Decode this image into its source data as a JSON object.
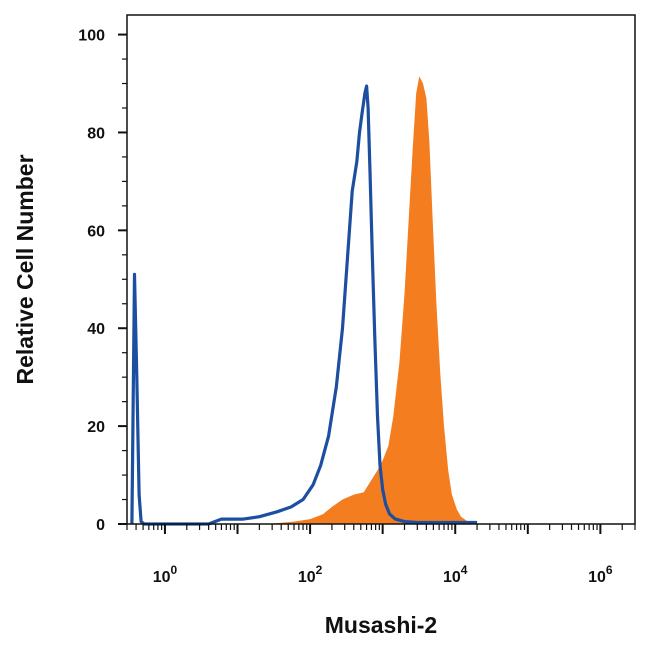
{
  "chart_data": {
    "type": "area",
    "title": "",
    "xlabel": "Musashi-2",
    "ylabel": "Relative Cell Number",
    "xscale": "log",
    "xlim": [
      0.3,
      3000000
    ],
    "ylim": [
      0,
      104
    ],
    "grid": false,
    "legend": "none",
    "y_ticks": [
      0,
      20,
      40,
      60,
      80,
      100
    ],
    "x_ticks": [
      {
        "base": "10",
        "exp": "0",
        "value": 1
      },
      {
        "base": "10",
        "exp": "2",
        "value": 100
      },
      {
        "base": "10",
        "exp": "4",
        "value": 10000
      },
      {
        "base": "10",
        "exp": "6",
        "value": 1000000
      }
    ],
    "series": [
      {
        "style": "filled",
        "color": "#f47d20",
        "points": [
          [
            25,
            0
          ],
          [
            60,
            0.5
          ],
          [
            100,
            1
          ],
          [
            150,
            2
          ],
          [
            200,
            3.5
          ],
          [
            280,
            5
          ],
          [
            400,
            6
          ],
          [
            550,
            6.5
          ],
          [
            700,
            9
          ],
          [
            850,
            11
          ],
          [
            1000,
            13
          ],
          [
            1200,
            16
          ],
          [
            1400,
            22
          ],
          [
            1700,
            33
          ],
          [
            2000,
            47
          ],
          [
            2300,
            63
          ],
          [
            2600,
            77
          ],
          [
            2900,
            88
          ],
          [
            3200,
            91.5
          ],
          [
            3600,
            90
          ],
          [
            4000,
            87
          ],
          [
            4400,
            78
          ],
          [
            4900,
            62
          ],
          [
            5500,
            45
          ],
          [
            6200,
            31
          ],
          [
            7000,
            20
          ],
          [
            8000,
            11
          ],
          [
            9000,
            6
          ],
          [
            10500,
            3
          ],
          [
            12000,
            1.5
          ],
          [
            15000,
            0.5
          ],
          [
            20000,
            0
          ]
        ]
      },
      {
        "style": "line",
        "color": "#1d4fa0",
        "points": [
          [
            0.35,
            0
          ],
          [
            0.38,
            51
          ],
          [
            0.41,
            30
          ],
          [
            0.44,
            6
          ],
          [
            0.47,
            0.5
          ],
          [
            0.52,
            0
          ],
          [
            4,
            0
          ],
          [
            6,
            1
          ],
          [
            12,
            1
          ],
          [
            20,
            1.5
          ],
          [
            35,
            2.5
          ],
          [
            55,
            3.5
          ],
          [
            80,
            5
          ],
          [
            110,
            8
          ],
          [
            140,
            12
          ],
          [
            180,
            18
          ],
          [
            230,
            28
          ],
          [
            280,
            40
          ],
          [
            330,
            55
          ],
          [
            380,
            68
          ],
          [
            440,
            74
          ],
          [
            480,
            80
          ],
          [
            520,
            84
          ],
          [
            570,
            88
          ],
          [
            600,
            89.5
          ],
          [
            630,
            85
          ],
          [
            670,
            72
          ],
          [
            720,
            55
          ],
          [
            780,
            38
          ],
          [
            850,
            22
          ],
          [
            920,
            12
          ],
          [
            1000,
            7
          ],
          [
            1100,
            4
          ],
          [
            1250,
            2
          ],
          [
            1500,
            1
          ],
          [
            2000,
            0.5
          ],
          [
            3000,
            0.3
          ],
          [
            20000,
            0.3
          ]
        ]
      }
    ]
  }
}
